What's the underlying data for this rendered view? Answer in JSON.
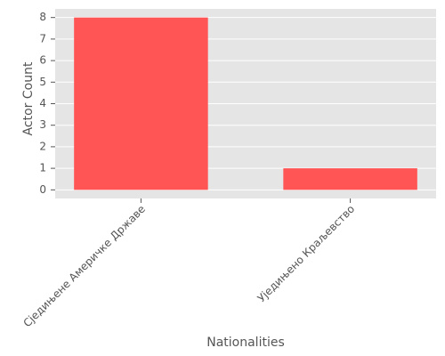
{
  "chart_data": {
    "type": "bar",
    "categories": [
      "Сједињене Америчке Државе",
      "Уједињено Краљевство"
    ],
    "values": [
      8,
      1
    ],
    "color": "#ff5555",
    "xlabel": "Nationalities",
    "ylabel": "Actor Count",
    "ylim": [
      -0.4,
      8.4
    ],
    "yticks": [
      0,
      1,
      2,
      3,
      4,
      5,
      6,
      7,
      8
    ],
    "grid": true
  }
}
